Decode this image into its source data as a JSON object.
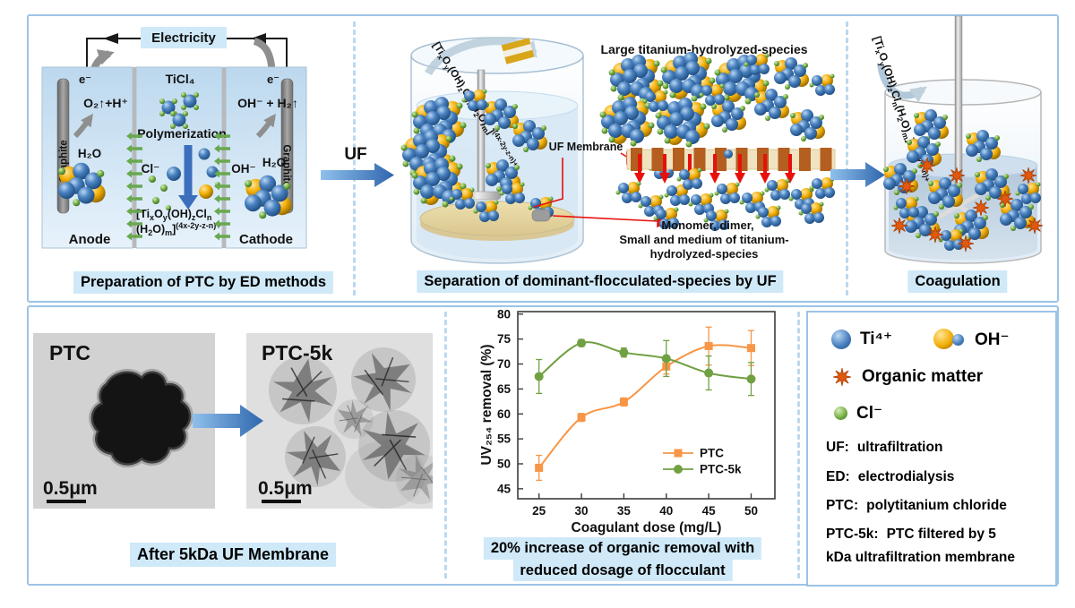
{
  "panels": {
    "ed": {
      "electricity": "Electricity",
      "e_minus": "e⁻",
      "anode_reaction": "O₂↑+H⁺",
      "water": "H₂O",
      "electrode": "Graphite",
      "anode": "Anode",
      "cathode": "Cathode",
      "ticl4": "TiCl₄",
      "polymerization": "Polymerization",
      "chloride": "Cl⁻",
      "hydroxide": "OH⁻",
      "cathode_reaction": "OH⁻ + H₂↑",
      "caption": "Preparation of PTC by ED methods"
    },
    "separation": {
      "uf_label": "UF",
      "uf_membrane": "UF Membrane",
      "large_species": "Large titanium-hydrolyzed-species",
      "monomer_line1": "Monomer, dimer,",
      "monomer_line2": "Small and medium of titanium-",
      "monomer_line3": "hydrolyzed-species",
      "caption": "Separation of dominant-flocculated-species by UF"
    },
    "coagulation": {
      "caption": "Coagulation"
    },
    "tem": {
      "label_left": "PTC",
      "label_right": "PTC-5k",
      "scale_bar": "0.5μm",
      "caption": "After 5kDa UF Membrane"
    },
    "chart_note": {
      "line1": "20% increase of organic removal with",
      "line2": "reduced dosage of flocculant"
    },
    "legend": {
      "items": [
        {
          "name": "ti",
          "label": "Ti⁴⁺"
        },
        {
          "name": "oh",
          "label": "OH⁻"
        },
        {
          "name": "organic",
          "label": "Organic matter"
        },
        {
          "name": "cl",
          "label": "Cl⁻"
        }
      ],
      "abbreviations": [
        {
          "abbr": "UF:",
          "def": "ultrafiltration"
        },
        {
          "abbr": "ED:",
          "def": "electrodialysis"
        },
        {
          "abbr": "PTC:",
          "def": "polytitanium chloride"
        },
        {
          "abbr": "PTC-5k:",
          "def": "PTC filtered by 5",
          "def2": "kDa ultrafiltration membrane"
        }
      ]
    }
  },
  "formulas": {
    "ptc_line1": [
      [
        "n",
        "[Ti"
      ],
      [
        "b",
        "x"
      ],
      [
        "n",
        "O"
      ],
      [
        "b",
        "y"
      ],
      [
        "n",
        "(OH)"
      ],
      [
        "b",
        "z"
      ],
      [
        "n",
        "Cl"
      ],
      [
        "b",
        "n"
      ]
    ],
    "ptc_line2": [
      [
        "n",
        "(H"
      ],
      [
        "b",
        "2"
      ],
      [
        "n",
        "O)"
      ],
      [
        "b",
        "m"
      ],
      [
        "n",
        "]"
      ],
      [
        "p",
        "(4x-2y-z-n)+"
      ]
    ],
    "ptc_full": [
      [
        "n",
        "[Ti"
      ],
      [
        "b",
        "x"
      ],
      [
        "n",
        "O"
      ],
      [
        "b",
        "y"
      ],
      [
        "n",
        "(OH)"
      ],
      [
        "b",
        "z"
      ],
      [
        "n",
        "Cl"
      ],
      [
        "b",
        "n"
      ],
      [
        "n",
        "(H"
      ],
      [
        "b",
        "2"
      ],
      [
        "n",
        "O)"
      ],
      [
        "b",
        "m"
      ],
      [
        "n",
        "]"
      ],
      [
        "p",
        "(4x-2y-z-n)+"
      ]
    ]
  },
  "colors": {
    "highlight": "#cfe9f8",
    "panel_border": "#9dc3e6",
    "divider": "#bcd8ee",
    "ptc_series": "#f79646",
    "ptc5k_series": "#70a042",
    "ti_sphere": "#3a76ba",
    "oh_sphere": "#f0ad00",
    "cl_sphere": "#74ad3f",
    "organic": "#e2590e",
    "membrane_block": "#b45f1f",
    "red_arrow": "#e8100c"
  },
  "chart_data": {
    "type": "line",
    "x": [
      25,
      30,
      35,
      40,
      45,
      50
    ],
    "series": [
      {
        "name": "PTC",
        "color": "#f79646",
        "marker": "square",
        "values": [
          49.2,
          59.3,
          62.4,
          69.5,
          73.6,
          73.2
        ],
        "errors": [
          2.5,
          0.8,
          0.8,
          1.5,
          3.8,
          3.5
        ]
      },
      {
        "name": "PTC-5k",
        "color": "#70a042",
        "marker": "circle",
        "values": [
          67.5,
          74.2,
          72.3,
          71.1,
          68.2,
          67.0
        ],
        "errors": [
          3.4,
          0.7,
          0.9,
          3.6,
          3.4,
          3.3
        ]
      }
    ],
    "xlabel": "Coagulant dose (mg/L)",
    "ylabel": "UV₂₅₄ removal (%)",
    "xticks": [
      25,
      30,
      35,
      40,
      45,
      50
    ],
    "yticks": [
      45,
      50,
      55,
      60,
      65,
      70,
      75,
      80
    ],
    "xlim": [
      22.5,
      52.8
    ],
    "ylim": [
      43,
      80.5
    ],
    "grid": false,
    "legend_position": "inside middle-right"
  }
}
